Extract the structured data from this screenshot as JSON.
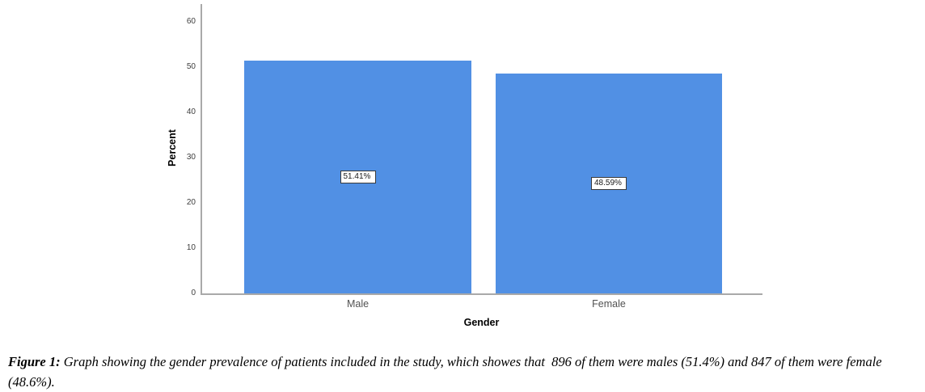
{
  "chart_data": {
    "type": "bar",
    "categories": [
      "Male",
      "Female"
    ],
    "values": [
      51.41,
      48.59
    ],
    "bar_labels": [
      "51.41%",
      "48.59%"
    ],
    "title": "",
    "xlabel": "Gender",
    "ylabel": "Percent",
    "ylim": [
      0,
      60
    ],
    "yticks": [
      0,
      10,
      20,
      30,
      40,
      50,
      60
    ],
    "grid": false,
    "legend": false,
    "colors": {
      "bar": "#5190e4",
      "axis": "#a9a9a9",
      "tick_label": "#3d3d3d",
      "category_label": "#525252",
      "axis_title": "#000000"
    }
  },
  "figure": {
    "caption_label": "Figure 1:",
    "caption_text": " Graph showing the gender prevalence of patients included in the study, which showes that  896 of them were males (51.4%) and 847 of them were female (48.6%)."
  }
}
